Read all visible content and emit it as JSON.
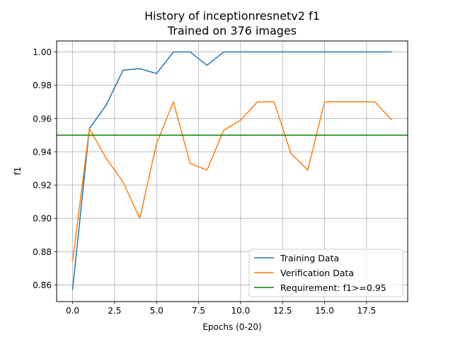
{
  "chart_data": {
    "type": "line",
    "title": "History of inceptionresnetv2 f1",
    "subtitle": "Trained on 376 images",
    "xlabel": "Epochs (0-20)",
    "ylabel": "f1",
    "xlim": [
      -0.95,
      19.95
    ],
    "ylim": [
      0.85,
      1.0066
    ],
    "x_ticks": [
      0.0,
      2.5,
      5.0,
      7.5,
      10.0,
      12.5,
      15.0,
      17.5
    ],
    "x_tick_labels": [
      "0.0",
      "2.5",
      "5.0",
      "7.5",
      "10.0",
      "12.5",
      "15.0",
      "17.5"
    ],
    "y_ticks": [
      0.86,
      0.88,
      0.9,
      0.92,
      0.94,
      0.96,
      0.98,
      1.0
    ],
    "y_tick_labels": [
      "0.86",
      "0.88",
      "0.90",
      "0.92",
      "0.94",
      "0.96",
      "0.98",
      "1.00"
    ],
    "grid": true,
    "legend_position": "lower-right",
    "x": [
      0,
      1,
      2,
      3,
      4,
      5,
      6,
      7,
      8,
      9,
      10,
      11,
      12,
      13,
      14,
      15,
      16,
      17,
      18,
      19
    ],
    "series": [
      {
        "name": "Training Data",
        "color": "#1f77b4",
        "values": [
          0.857,
          0.954,
          0.968,
          0.989,
          0.99,
          0.987,
          1.0,
          1.0,
          0.992,
          1.0,
          1.0,
          1.0,
          1.0,
          1.0,
          1.0,
          1.0,
          1.0,
          1.0,
          1.0,
          1.0
        ]
      },
      {
        "name": "Verification Data",
        "color": "#ff7f0e",
        "values": [
          0.874,
          0.954,
          0.936,
          0.922,
          0.9,
          0.945,
          0.97,
          0.933,
          0.929,
          0.953,
          0.959,
          0.97,
          0.97,
          0.939,
          0.929,
          0.97,
          0.97,
          0.97,
          0.97,
          0.959
        ]
      }
    ],
    "requirement": {
      "name": "Requirement: f1>=0.95",
      "color": "#008000",
      "value": 0.95
    }
  }
}
